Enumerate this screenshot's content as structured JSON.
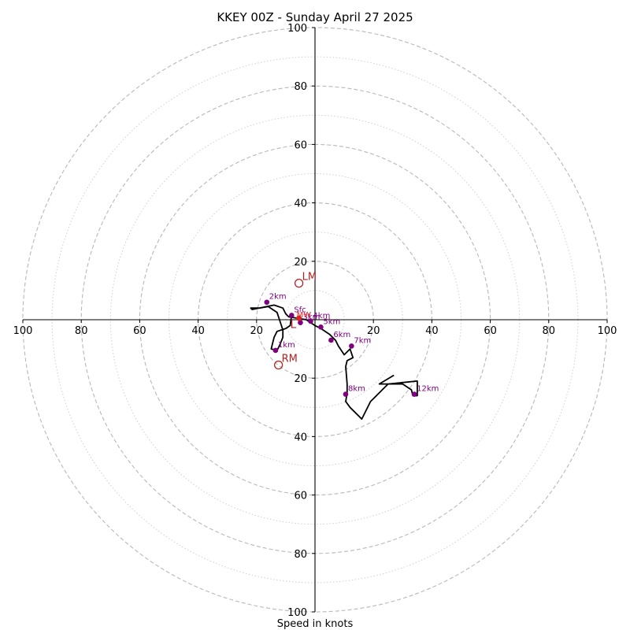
{
  "chart_data": {
    "type": "scatter",
    "title": "KKEY 00Z - Sunday April 27 2025",
    "xlabel": "Speed in knots",
    "xlim": [
      -100,
      100
    ],
    "ylim": [
      -100,
      100
    ],
    "ring_major": [
      20,
      40,
      60,
      80,
      100
    ],
    "ring_minor": [
      10,
      30,
      50,
      70,
      90
    ],
    "x_ticks": [
      {
        "value": -100,
        "label": "100"
      },
      {
        "value": -80,
        "label": "80"
      },
      {
        "value": -60,
        "label": "60"
      },
      {
        "value": -40,
        "label": "40"
      },
      {
        "value": -20,
        "label": "20"
      },
      {
        "value": 20,
        "label": "20"
      },
      {
        "value": 40,
        "label": "40"
      },
      {
        "value": 60,
        "label": "60"
      },
      {
        "value": 80,
        "label": "80"
      },
      {
        "value": 100,
        "label": "100"
      }
    ],
    "y_ticks": [
      {
        "value": 100,
        "label": "100"
      },
      {
        "value": 80,
        "label": "80"
      },
      {
        "value": 60,
        "label": "60"
      },
      {
        "value": 40,
        "label": "40"
      },
      {
        "value": 20,
        "label": "20"
      },
      {
        "value": -20,
        "label": "20"
      },
      {
        "value": -40,
        "label": "40"
      },
      {
        "value": -60,
        "label": "60"
      },
      {
        "value": -80,
        "label": "80"
      },
      {
        "value": -100,
        "label": "100"
      }
    ],
    "hodograph_line": [
      [
        -8,
        1.5
      ],
      [
        -8.5,
        -2
      ],
      [
        -10,
        -3
      ],
      [
        -13,
        -4
      ],
      [
        -13.5,
        -5
      ],
      [
        -14,
        -6
      ],
      [
        -14.5,
        -8
      ],
      [
        -15,
        -10
      ],
      [
        -13,
        -10.5
      ],
      [
        -12,
        -8.5
      ],
      [
        -11,
        -6
      ],
      [
        -11,
        -3.5
      ],
      [
        -12,
        -0.5
      ],
      [
        -13,
        2.5
      ],
      [
        -16,
        4.5
      ],
      [
        -19,
        4
      ],
      [
        -22,
        4
      ],
      [
        -21.5,
        3.5
      ],
      [
        -14,
        5
      ],
      [
        -11,
        4
      ],
      [
        -10,
        2
      ],
      [
        -9,
        1
      ],
      [
        -6,
        0.5
      ],
      [
        -3,
        0
      ],
      [
        0,
        -2
      ],
      [
        2,
        -3
      ],
      [
        5,
        -5
      ],
      [
        7,
        -7
      ],
      [
        8,
        -9
      ],
      [
        10,
        -12
      ],
      [
        12,
        -10
      ],
      [
        13,
        -13
      ],
      [
        11,
        -14
      ],
      [
        10.5,
        -16
      ],
      [
        11,
        -22
      ],
      [
        11,
        -25
      ],
      [
        10.5,
        -28
      ],
      [
        12,
        -30
      ],
      [
        16,
        -34
      ],
      [
        19,
        -28
      ],
      [
        25,
        -22
      ],
      [
        35,
        -21
      ],
      [
        35,
        -26
      ],
      [
        33.5,
        -26
      ],
      [
        33,
        -24
      ],
      [
        30,
        -22
      ],
      [
        22,
        -22
      ],
      [
        27,
        -19
      ]
    ],
    "height_markers": [
      {
        "label": "Sfc",
        "x": -8,
        "y": 1.5
      },
      {
        "label": "1km",
        "x": -13.5,
        "y": -10.5
      },
      {
        "label": "2km",
        "x": -16.5,
        "y": 6
      },
      {
        "label": "3km",
        "x": -5,
        "y": -1
      },
      {
        "label": "4km",
        "x": -1.5,
        "y": -0.5
      },
      {
        "label": "5km",
        "x": 2,
        "y": -2.5
      },
      {
        "label": "6km",
        "x": 5.5,
        "y": -7
      },
      {
        "label": "7km",
        "x": 12.5,
        "y": -9
      },
      {
        "label": "8km",
        "x": 10.5,
        "y": -25.5
      },
      {
        "label": "12km",
        "x": 34,
        "y": -25.5
      }
    ],
    "storm_motion": [
      {
        "label": "LM",
        "x": -5.5,
        "y": 12.5
      },
      {
        "label": "RM",
        "x": -12.5,
        "y": -15.5
      }
    ],
    "mean_wind": {
      "label": "MW",
      "x": -5.5,
      "y": 0.5
    },
    "critical_marker": {
      "label": "L",
      "x": -8.5,
      "y": -1.5
    },
    "colors": {
      "hodograph": "#000000",
      "height_marker": "#800080",
      "storm_motion": "#b22222",
      "mean_wind": "#dd2222",
      "grid": "#b8b8b8"
    }
  }
}
